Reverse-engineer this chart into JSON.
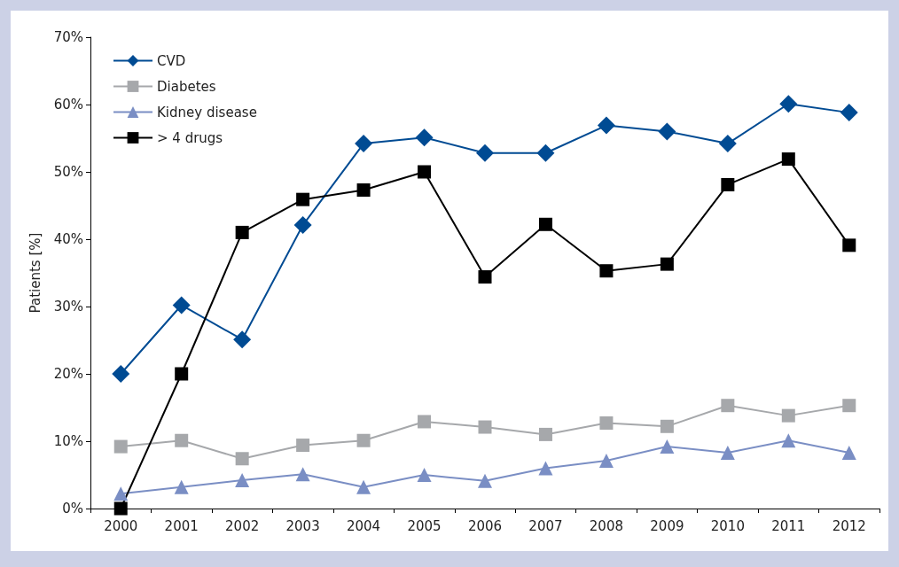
{
  "chart_data": {
    "type": "line",
    "ylabel": "Patients [%]",
    "categories": [
      "2000",
      "2001",
      "2002",
      "2003",
      "2004",
      "2005",
      "2006",
      "2007",
      "2008",
      "2009",
      "2010",
      "2011",
      "2012"
    ],
    "series": [
      {
        "name": "CVD",
        "color": "#004b93",
        "marker": "diamond",
        "values": [
          20,
          30.2,
          25.1,
          42.1,
          54.2,
          55.1,
          52.8,
          52.8,
          56.9,
          56,
          54.2,
          60.1,
          58.8
        ]
      },
      {
        "name": "Diabetes",
        "color": "#a6a8ab",
        "marker": "square",
        "values": [
          9.2,
          10.1,
          7.4,
          9.4,
          10.1,
          12.9,
          12.1,
          11,
          12.7,
          12.2,
          15.3,
          13.8,
          15.3
        ]
      },
      {
        "name": "Kidney disease",
        "color": "#7a8ec4",
        "marker": "triangle",
        "values": [
          2.2,
          3.2,
          4.2,
          5.1,
          3.2,
          5,
          4.1,
          6,
          7.1,
          9.2,
          8.3,
          10.1,
          8.3
        ]
      },
      {
        "name": "> 4 drugs",
        "color": "#000000",
        "marker": "square",
        "values": [
          0,
          20,
          41,
          45.9,
          47.3,
          50,
          34.4,
          42.2,
          35.3,
          36.3,
          48.1,
          51.9,
          39.1
        ]
      }
    ],
    "ylim": [
      0,
      70
    ],
    "yticks": [
      {
        "value": 0,
        "label": "0%"
      },
      {
        "value": 10,
        "label": "10%"
      },
      {
        "value": 20,
        "label": "20%"
      },
      {
        "value": 30,
        "label": "30%"
      },
      {
        "value": 40,
        "label": "40%"
      },
      {
        "value": 50,
        "label": "50%"
      },
      {
        "value": 60,
        "label": "60%"
      },
      {
        "value": 70,
        "label": "70%"
      }
    ],
    "grid": false,
    "legend": "top left",
    "line_style": "solid"
  }
}
